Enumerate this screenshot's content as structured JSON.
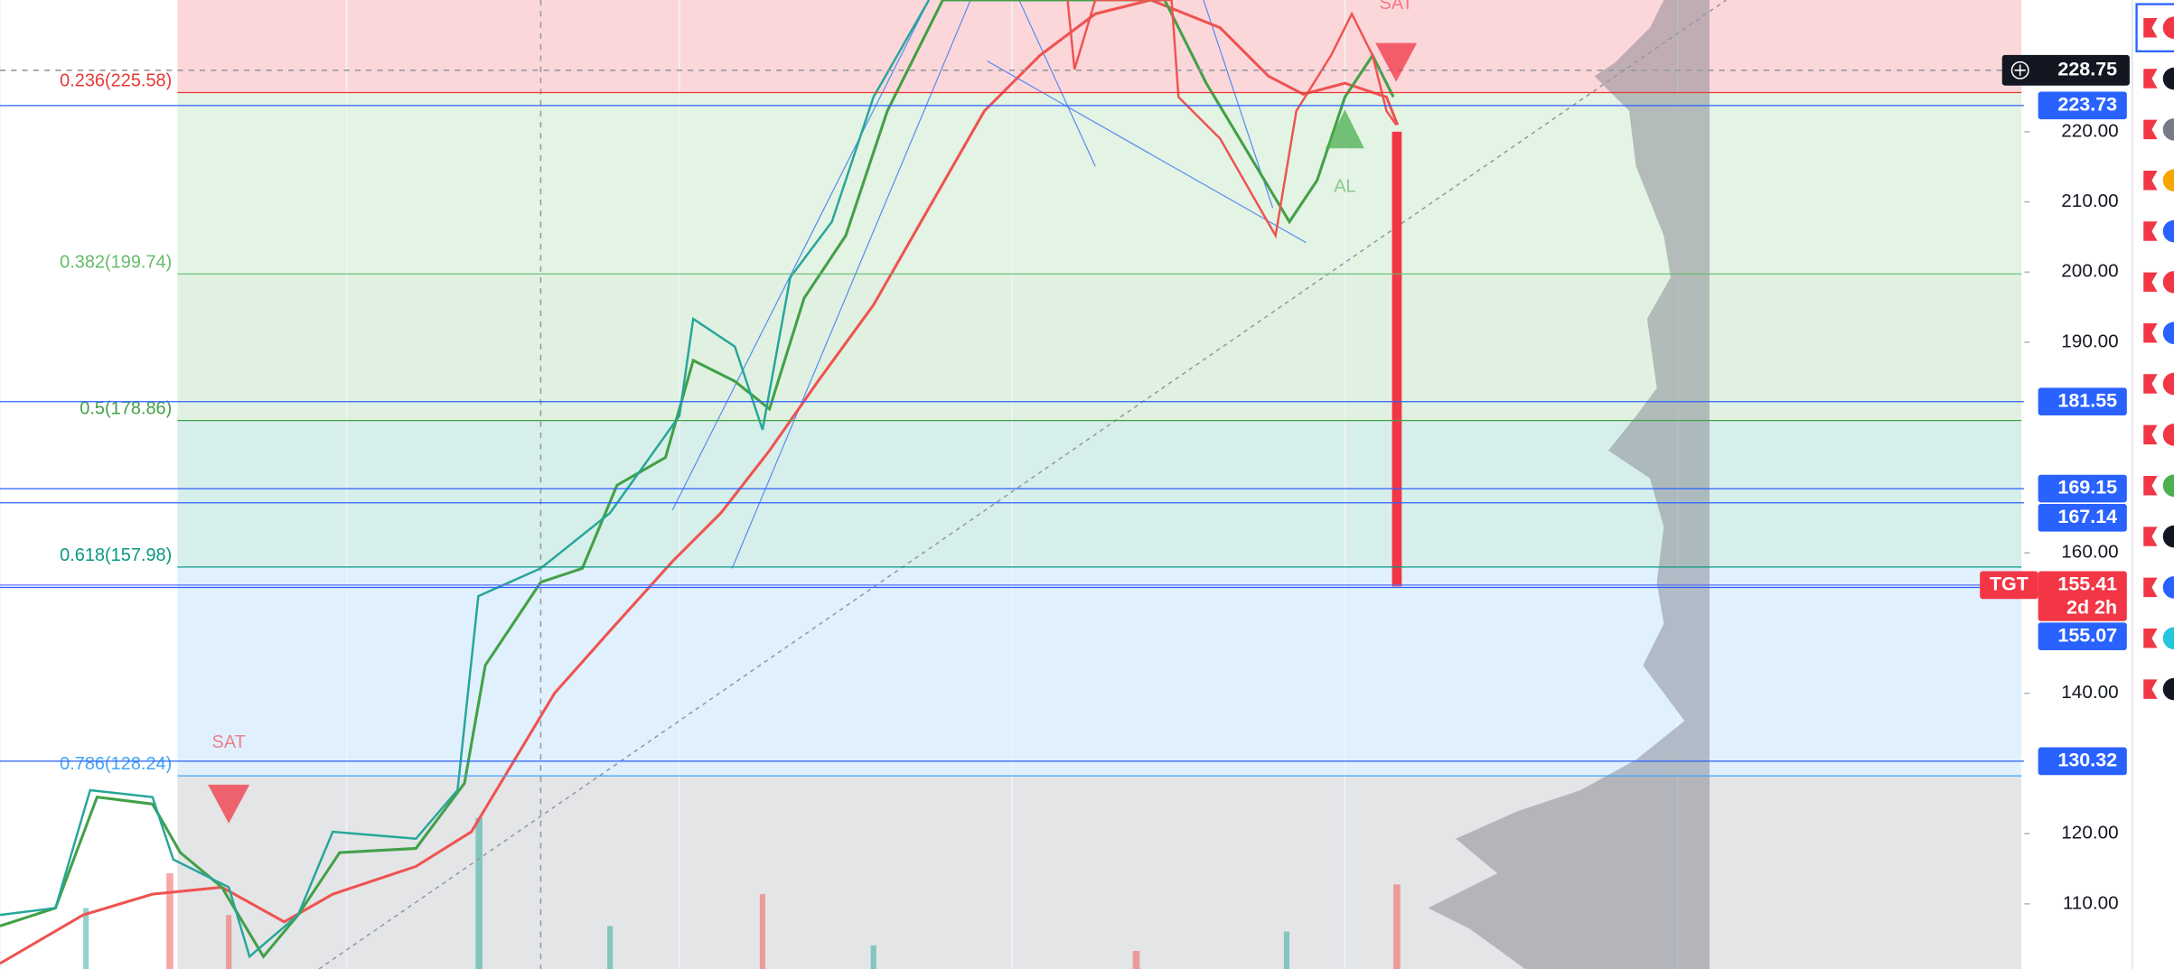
{
  "fib_levels": [
    {
      "label": "0.236(225.58)",
      "value": 225.58,
      "color": "#e53935"
    },
    {
      "label": "0.382(199.74)",
      "value": 199.74,
      "color": "#66bb6a"
    },
    {
      "label": "0.5(178.86)",
      "value": 178.86,
      "color": "#43a047"
    },
    {
      "label": "0.618(157.98)",
      "value": 157.98,
      "color": "#089981"
    },
    {
      "label": "0.786(128.24)",
      "value": 128.24,
      "color": "#42a5f5"
    }
  ],
  "price_axis": {
    "ticks": [
      {
        "value": 220,
        "label": "220.00"
      },
      {
        "value": 210,
        "label": "210.00"
      },
      {
        "value": 200,
        "label": "200.00"
      },
      {
        "value": 190,
        "label": "190.00"
      },
      {
        "value": 160,
        "label": "160.00"
      },
      {
        "value": 140,
        "label": "140.00"
      },
      {
        "value": 120,
        "label": "120.00"
      },
      {
        "value": 110,
        "label": "110.00"
      }
    ]
  },
  "price_labels": [
    {
      "value": 228.75,
      "label": "228.75",
      "style": "current"
    },
    {
      "value": 223.73,
      "label": "223.73",
      "style": "line"
    },
    {
      "value": 181.55,
      "label": "181.55",
      "style": "line"
    },
    {
      "value": 169.15,
      "label": "169.15",
      "style": "line"
    },
    {
      "value": 167.14,
      "label": "167.14",
      "style": "line"
    },
    {
      "value": 155.41,
      "label": "155.41",
      "tag": "TGT",
      "countdown": "2d 2h",
      "style": "target"
    },
    {
      "value": 155.07,
      "label": "155.07",
      "style": "line"
    },
    {
      "value": 130.32,
      "label": "130.32",
      "style": "line"
    }
  ],
  "signals": [
    {
      "text": "SAT",
      "kind": "sell"
    },
    {
      "text": "SAT",
      "kind": "sell"
    },
    {
      "text": "AL",
      "kind": "buy"
    }
  ]
}
